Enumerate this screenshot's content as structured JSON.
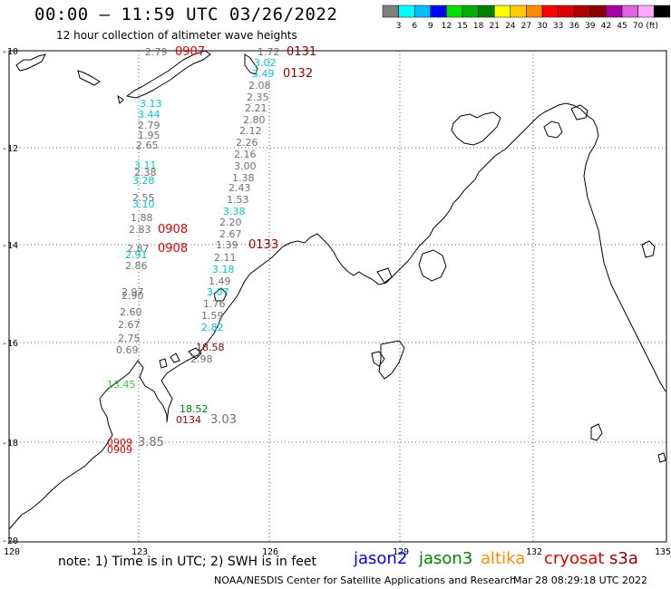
{
  "header": {
    "title": "00:00 – 11:59 UTC 03/26/2022",
    "subtitle": "12 hour collection of altimeter wave heights"
  },
  "colorbar": {
    "colors": [
      "#808080",
      "#00ffff",
      "#00bfff",
      "#0000ff",
      "#00e000",
      "#00b000",
      "#008000",
      "#ffff00",
      "#ffcc00",
      "#ff8c00",
      "#ff0000",
      "#dd0000",
      "#b00000",
      "#880000",
      "#aa00aa",
      "#dd66dd",
      "#ffaaff",
      "#000000"
    ],
    "labels": [
      "3",
      "6",
      "9",
      "12",
      "15",
      "18",
      "21",
      "24",
      "27",
      "30",
      "33",
      "36",
      "39",
      "42",
      "45",
      "70",
      "(ft)"
    ]
  },
  "axes": {
    "lon_ticks": [
      "120",
      "123",
      "126",
      "129",
      "132",
      "135"
    ],
    "lat_ticks": [
      "-10",
      "-12",
      "-14",
      "-16",
      "-18",
      "-20"
    ]
  },
  "observations": [
    {
      "text": "2.79",
      "color": "#707070"
    },
    {
      "text": "0907",
      "color": "#e00000"
    },
    {
      "text": "1.72",
      "color": "#707070"
    },
    {
      "text": "0131",
      "color": "#8b0000"
    },
    {
      "text": "3.02",
      "color": "#00c8d0"
    },
    {
      "text": "0132",
      "color": "#8b0000"
    },
    {
      "text": "3.49",
      "color": "#00c8d0"
    },
    {
      "text": "2.08",
      "color": "#707070"
    },
    {
      "text": "2.35",
      "color": "#707070"
    },
    {
      "text": "3.13",
      "color": "#00c8d0"
    },
    {
      "text": "2.21",
      "color": "#707070"
    },
    {
      "text": "3.44",
      "color": "#00c8d0"
    },
    {
      "text": "2.80",
      "color": "#707070"
    },
    {
      "text": "2.79",
      "color": "#707070"
    },
    {
      "text": "2.12",
      "color": "#707070"
    },
    {
      "text": "1.95",
      "color": "#707070"
    },
    {
      "text": "2.26",
      "color": "#707070"
    },
    {
      "text": "2.65",
      "color": "#707070"
    },
    {
      "text": "2.16",
      "color": "#707070"
    },
    {
      "text": "3.11",
      "color": "#00c8d0"
    },
    {
      "text": "3.00",
      "color": "#707070"
    },
    {
      "text": "2.38",
      "color": "#707070"
    },
    {
      "text": "1.38",
      "color": "#707070"
    },
    {
      "text": "3.28",
      "color": "#00c8d0"
    },
    {
      "text": "2.43",
      "color": "#707070"
    },
    {
      "text": "2.55",
      "color": "#707070"
    },
    {
      "text": "1.53",
      "color": "#707070"
    },
    {
      "text": "3.10",
      "color": "#00c8d0"
    },
    {
      "text": "3.38",
      "color": "#00c8d0"
    },
    {
      "text": "1.88",
      "color": "#707070"
    },
    {
      "text": "2.20",
      "color": "#707070"
    },
    {
      "text": "2.83",
      "color": "#707070"
    },
    {
      "text": "0908",
      "color": "#e00000"
    },
    {
      "text": "2.67",
      "color": "#707070"
    },
    {
      "text": "1.39",
      "color": "#707070"
    },
    {
      "text": "0133",
      "color": "#8b0000"
    },
    {
      "text": "2.87",
      "color": "#707070"
    },
    {
      "text": "0908",
      "color": "#e00000"
    },
    {
      "text": "2.91",
      "color": "#00c8d0"
    },
    {
      "text": "2.11",
      "color": "#707070"
    },
    {
      "text": "2.86",
      "color": "#707070"
    },
    {
      "text": "3.18",
      "color": "#00c8d0"
    },
    {
      "text": "1.49",
      "color": "#707070"
    },
    {
      "text": "2.97",
      "color": "#707070"
    },
    {
      "text": "3.07",
      "color": "#00c8d0"
    },
    {
      "text": "2.90",
      "color": "#707070"
    },
    {
      "text": "1.76",
      "color": "#707070"
    },
    {
      "text": "2.60",
      "color": "#707070"
    },
    {
      "text": "1.59",
      "color": "#707070"
    },
    {
      "text": "2.67",
      "color": "#707070"
    },
    {
      "text": "2.82",
      "color": "#00c8d0"
    },
    {
      "text": "2.75",
      "color": "#707070"
    },
    {
      "text": "0.69",
      "color": "#707070"
    },
    {
      "text": "18.58",
      "color": "#8b0000"
    },
    {
      "text": "2.98",
      "color": "#707070"
    },
    {
      "text": "13.45",
      "color": "#33cc33"
    },
    {
      "text": "18.52",
      "color": "#008000"
    },
    {
      "text": "0134",
      "color": "#8b0000"
    },
    {
      "text": "3.03",
      "color": "#707070"
    },
    {
      "text": "0909",
      "color": "#e00000"
    },
    {
      "text": "3.85",
      "color": "#707070"
    },
    {
      "text": "0909",
      "color": "#e00000"
    }
  ],
  "satellites": [
    {
      "name": "jason2",
      "color": "#0000ff"
    },
    {
      "name": "jason3",
      "color": "#008000"
    },
    {
      "name": "altika",
      "color": "#ff8c00"
    },
    {
      "name": "cryosat",
      "color": "#e00000"
    },
    {
      "name": "s3a",
      "color": "#8b0000"
    }
  ],
  "footer": {
    "note": "note: 1) Time is in UTC; 2) SWH is in feet",
    "credit": "NOAA/NESDIS Center for Satellite Applications and Research",
    "timestamp": "Mar 28 08:29:18 UTC 2022"
  }
}
